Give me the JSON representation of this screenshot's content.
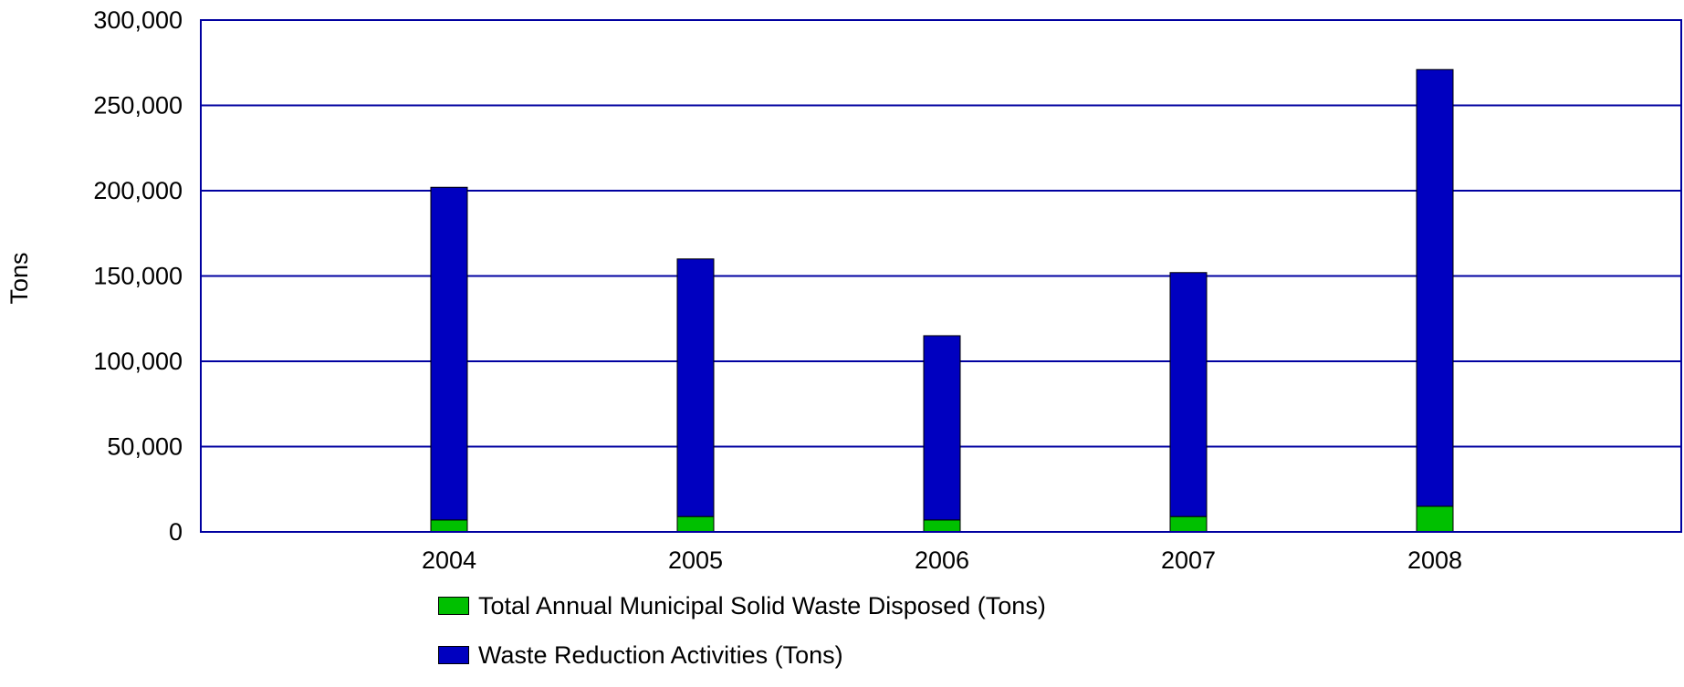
{
  "chart_data": {
    "type": "bar",
    "stacked": true,
    "categories": [
      "2004",
      "2005",
      "2006",
      "2007",
      "2008"
    ],
    "series": [
      {
        "name": "Total Annual Municipal Solid Waste Disposed (Tons)",
        "color": "#00c000",
        "values": [
          7000,
          9000,
          7000,
          9000,
          15000
        ]
      },
      {
        "name": "Waste Reduction Activities (Tons)",
        "color": "#0000c0",
        "values": [
          195000,
          151000,
          108000,
          143000,
          256000
        ]
      }
    ],
    "ylabel": "Tons",
    "xlabel": "",
    "ylim": [
      0,
      300000
    ],
    "yticks": [
      "0",
      "50,000",
      "100,000",
      "150,000",
      "200,000",
      "250,000",
      "300,000"
    ],
    "grid": true,
    "gridline_color": "#0000a0",
    "legend_position": "bottom"
  }
}
